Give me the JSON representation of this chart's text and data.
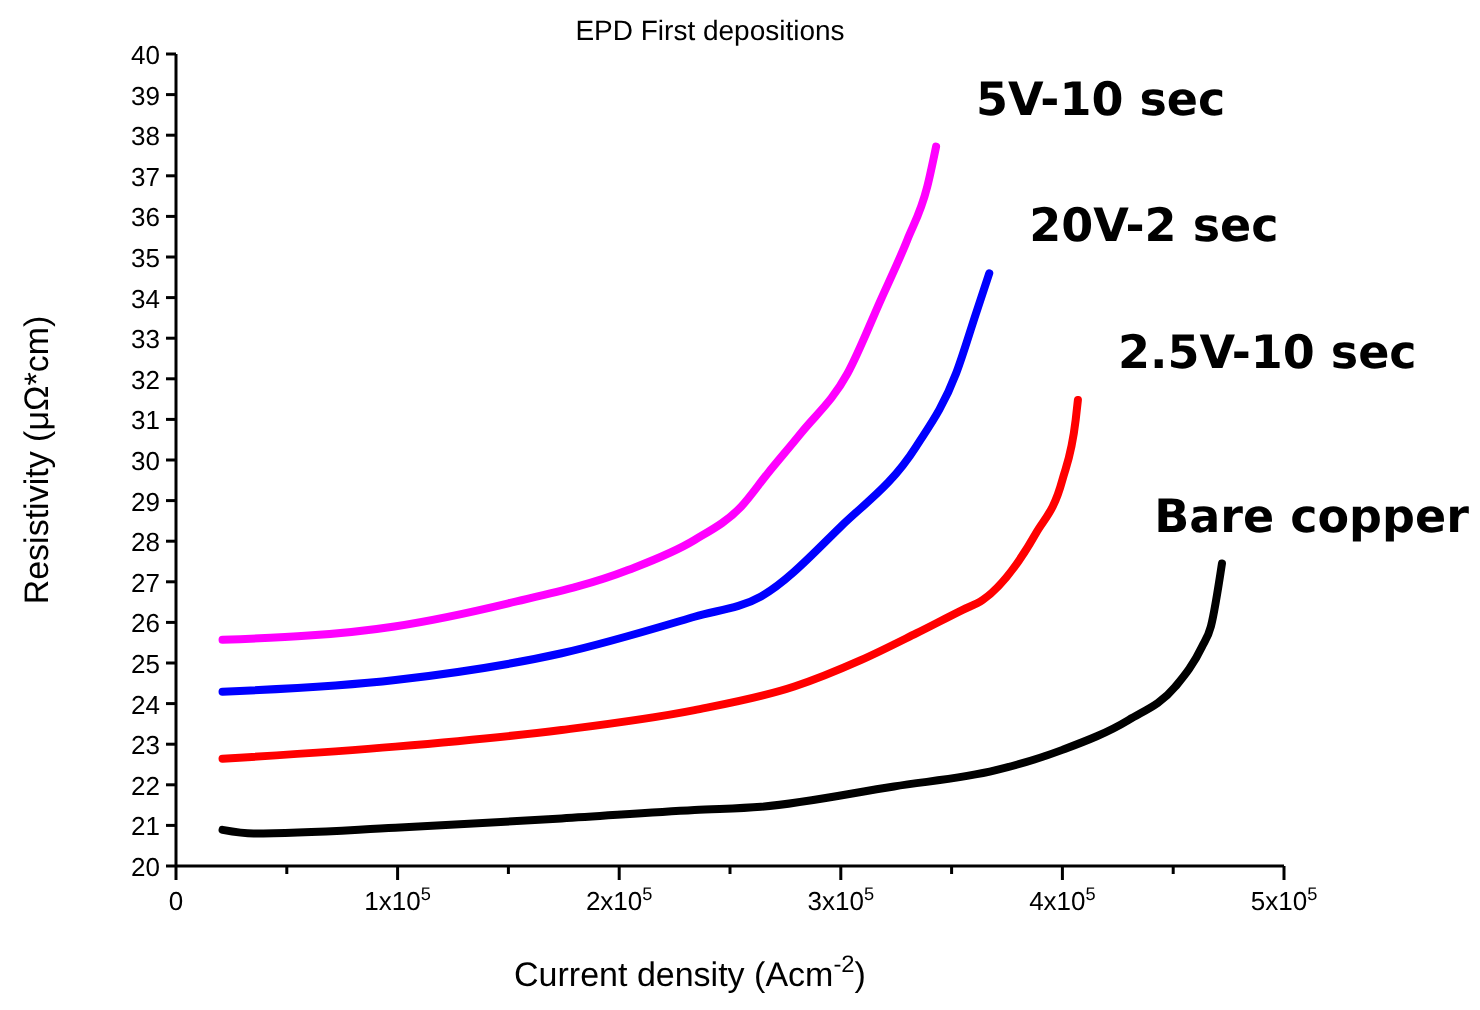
{
  "chart_data": {
    "type": "line",
    "title": "EPD First depositions",
    "xlabel": "Current density (Acm$^{-2}$)",
    "ylabel": "Resistivity (μΩ*cm)",
    "xlim": [
      0,
      500000
    ],
    "ylim": [
      20,
      40
    ],
    "xticks": [
      {
        "value": 0,
        "label": "0"
      },
      {
        "value": 50000,
        "label": null
      },
      {
        "value": 100000,
        "label": "1x10$^{5}$"
      },
      {
        "value": 150000,
        "label": null
      },
      {
        "value": 200000,
        "label": "2x10$^{5}$"
      },
      {
        "value": 250000,
        "label": null
      },
      {
        "value": 300000,
        "label": "3x10$^{5}$"
      },
      {
        "value": 350000,
        "label": null
      },
      {
        "value": 400000,
        "label": "4x10$^{5}$"
      },
      {
        "value": 450000,
        "label": null
      },
      {
        "value": 500000,
        "label": "5x10$^{5}$"
      }
    ],
    "yticks": [
      20,
      21,
      22,
      23,
      24,
      25,
      26,
      27,
      28,
      29,
      30,
      31,
      32,
      33,
      34,
      35,
      36,
      37,
      38,
      39,
      40
    ],
    "grid": false,
    "marker": "none",
    "line_style": "solid",
    "series": [
      {
        "name": "5V-10 sec",
        "color": "#ff00ff",
        "x": [
          21000,
          98600,
          150000,
          204000,
          234000,
          255000,
          267000,
          282000,
          303000,
          318000,
          330000,
          339000,
          343000
        ],
        "values": [
          25.57,
          25.9,
          26.47,
          27.29,
          28.03,
          28.85,
          29.67,
          30.66,
          32.13,
          33.94,
          35.42,
          36.73,
          37.72
        ]
      },
      {
        "name": "20V-2 sec",
        "color": "#0000ff",
        "x": [
          21000,
          99000,
          174000,
          234000,
          264000,
          300000,
          334000,
          352000,
          361000,
          367000
        ],
        "values": [
          24.29,
          24.58,
          25.24,
          26.14,
          26.64,
          28.36,
          30.33,
          32.13,
          33.61,
          34.6
        ]
      },
      {
        "name": "2.5V-10 sec",
        "color": "#ff0000",
        "x": [
          21000,
          99000,
          174000,
          234000,
          279000,
          309000,
          334000,
          355000,
          364000,
          388000,
          400000,
          406000,
          407000
        ],
        "values": [
          22.64,
          22.94,
          23.35,
          23.84,
          24.42,
          25.07,
          25.73,
          26.31,
          26.55,
          28.19,
          29.51,
          30.99,
          31.48
        ]
      },
      {
        "name": "Bare copper",
        "color": "#000000",
        "x": [
          21000,
          35000,
          99000,
          174000,
          234000,
          264000,
          324000,
          370000,
          400000,
          430000,
          451000,
          463000,
          467000,
          472000
        ],
        "values": [
          20.89,
          20.8,
          20.94,
          21.17,
          21.38,
          21.46,
          21.96,
          22.36,
          22.86,
          23.6,
          24.42,
          25.4,
          25.9,
          27.45
        ]
      }
    ]
  }
}
